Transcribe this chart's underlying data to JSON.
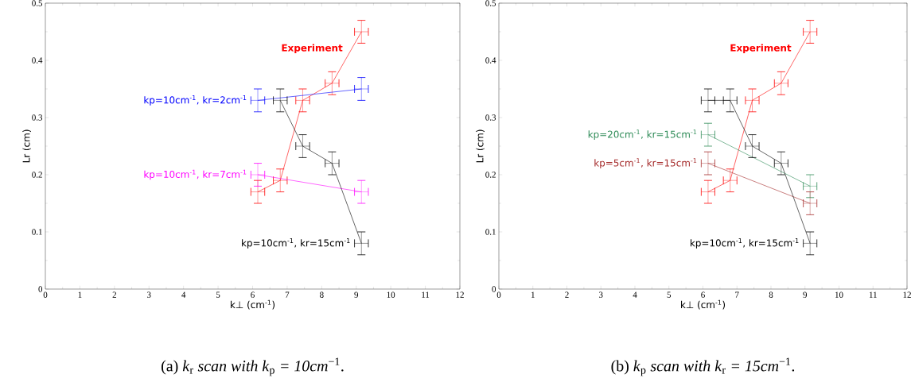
{
  "chart_data": [
    {
      "type": "line",
      "xlabel": "k⊥ (cm$^{-1}$)",
      "ylabel": "Lr (cm)",
      "xlim": [
        0,
        12
      ],
      "ylim": [
        0,
        0.5
      ],
      "xticks": [
        0,
        1,
        2,
        3,
        4,
        5,
        6,
        7,
        8,
        9,
        10,
        11,
        12
      ],
      "yticks": [
        0,
        0.1,
        0.2,
        0.3,
        0.4,
        0.5
      ],
      "annotations": [
        "(a) *k*$_{r}$ *scan with k*$_{p}$ *= 10cm*$^{−1}$."
      ],
      "series": [
        {
          "name": "Experiment",
          "color": "#ff0000",
          "x": [
            6.15,
            6.8,
            7.45,
            8.3,
            9.15
          ],
          "values": [
            0.17,
            0.19,
            0.33,
            0.36,
            0.45
          ],
          "errors": [
            0.02,
            0.02,
            0.02,
            0.02,
            0.02
          ],
          "xerrors": [
            0.2,
            0.2,
            0.2,
            0.2,
            0.2
          ]
        },
        {
          "name": "kp=10cm$^{-1}$, kr=2cm$^{-1}$",
          "color": "#0000ff",
          "x": [
            6.15,
            9.15
          ],
          "values": [
            0.33,
            0.35
          ],
          "errors": [
            0.02,
            0.02
          ],
          "xerrors": [
            0.2,
            0.2
          ]
        },
        {
          "name": "kp=10cm$^{-1}$, kr=7cm$^{-1}$",
          "color": "#ff00ff",
          "x": [
            6.15,
            9.15
          ],
          "values": [
            0.2,
            0.17
          ],
          "errors": [
            0.02,
            0.02
          ],
          "xerrors": [
            0.2,
            0.2
          ]
        },
        {
          "name": "kp=10cm$^{-1}$, kr=15cm$^{-1}$",
          "color": "#000000",
          "x": [
            6.8,
            7.45,
            8.3,
            9.15
          ],
          "values": [
            0.33,
            0.25,
            0.22,
            0.08
          ],
          "errors": [
            0.02,
            0.02,
            0.02,
            0.02
          ],
          "xerrors": [
            0.2,
            0.2,
            0.2,
            0.2
          ]
        }
      ]
    },
    {
      "type": "line",
      "xlabel": "k⊥ (cm$^{-1}$)",
      "ylabel": "Lr (cm)",
      "xlim": [
        0,
        12
      ],
      "ylim": [
        0,
        0.5
      ],
      "xticks": [
        0,
        1,
        2,
        3,
        4,
        5,
        6,
        7,
        8,
        9,
        10,
        11,
        12
      ],
      "yticks": [
        0,
        0.1,
        0.2,
        0.3,
        0.4,
        0.5
      ],
      "annotations": [
        "(b) *k*$_{p}$ *scan with k*$_{r}$ *= 15cm*$^{−1}$."
      ],
      "series": [
        {
          "name": "Experiment",
          "color": "#ff0000",
          "x": [
            6.15,
            6.8,
            7.45,
            8.3,
            9.15
          ],
          "values": [
            0.17,
            0.19,
            0.33,
            0.36,
            0.45
          ],
          "errors": [
            0.02,
            0.02,
            0.02,
            0.02,
            0.02
          ],
          "xerrors": [
            0.2,
            0.2,
            0.2,
            0.2,
            0.2
          ]
        },
        {
          "name": "kp=20cm$^{-1}$, kr=15cm$^{-1}$",
          "color": "#2e8b57",
          "x": [
            6.15,
            9.15
          ],
          "values": [
            0.27,
            0.18
          ],
          "errors": [
            0.02,
            0.02
          ],
          "xerrors": [
            0.2,
            0.2
          ]
        },
        {
          "name": "kp=5cm$^{-1}$, kr=15cm$^{-1}$",
          "color": "#a52a2a",
          "x": [
            6.15,
            9.15
          ],
          "values": [
            0.22,
            0.15
          ],
          "errors": [
            0.02,
            0.02
          ],
          "xerrors": [
            0.2,
            0.2
          ]
        },
        {
          "name": "kp=10cm$^{-1}$, kr=15cm$^{-1}$",
          "color": "#000000",
          "x": [
            6.15,
            6.8,
            7.45,
            8.3,
            9.15
          ],
          "values": [
            0.33,
            0.33,
            0.25,
            0.22,
            0.08
          ],
          "errors": [
            0.02,
            0.02,
            0.02,
            0.02,
            0.02
          ],
          "xerrors": [
            0.2,
            0.2,
            0.2,
            0.2,
            0.2
          ]
        }
      ]
    }
  ]
}
